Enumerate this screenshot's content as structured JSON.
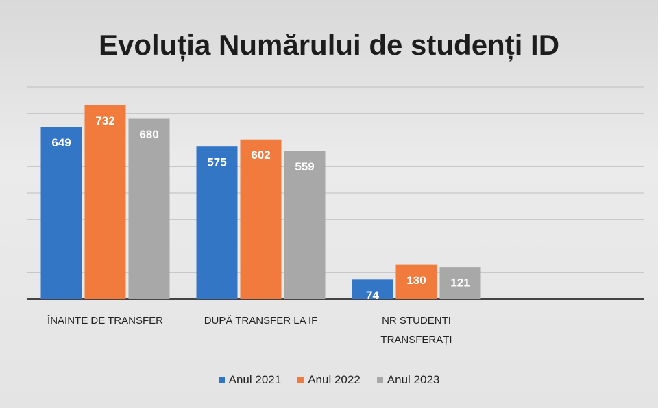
{
  "chart_data": {
    "type": "bar",
    "title": "Evoluția Numărului de studenți ID",
    "categories": [
      "ÎNAINTE DE TRANSFER",
      "DUPĂ TRANSFER LA IF",
      "NR STUDENTI TRANSFERAȚI"
    ],
    "series": [
      {
        "name": "Anul 2021",
        "color": "#3476c6",
        "values": [
          649,
          575,
          74
        ]
      },
      {
        "name": "Anul 2022",
        "color": "#f07b3c",
        "values": [
          732,
          602,
          130
        ]
      },
      {
        "name": "Anul 2023",
        "color": "#a8a8a8",
        "values": [
          680,
          559,
          121
        ]
      }
    ],
    "ylim": [
      0,
      800
    ],
    "yticks": [
      0,
      100,
      200,
      300,
      400,
      500,
      600,
      700,
      800
    ],
    "grid": true,
    "legend": "bottom"
  }
}
